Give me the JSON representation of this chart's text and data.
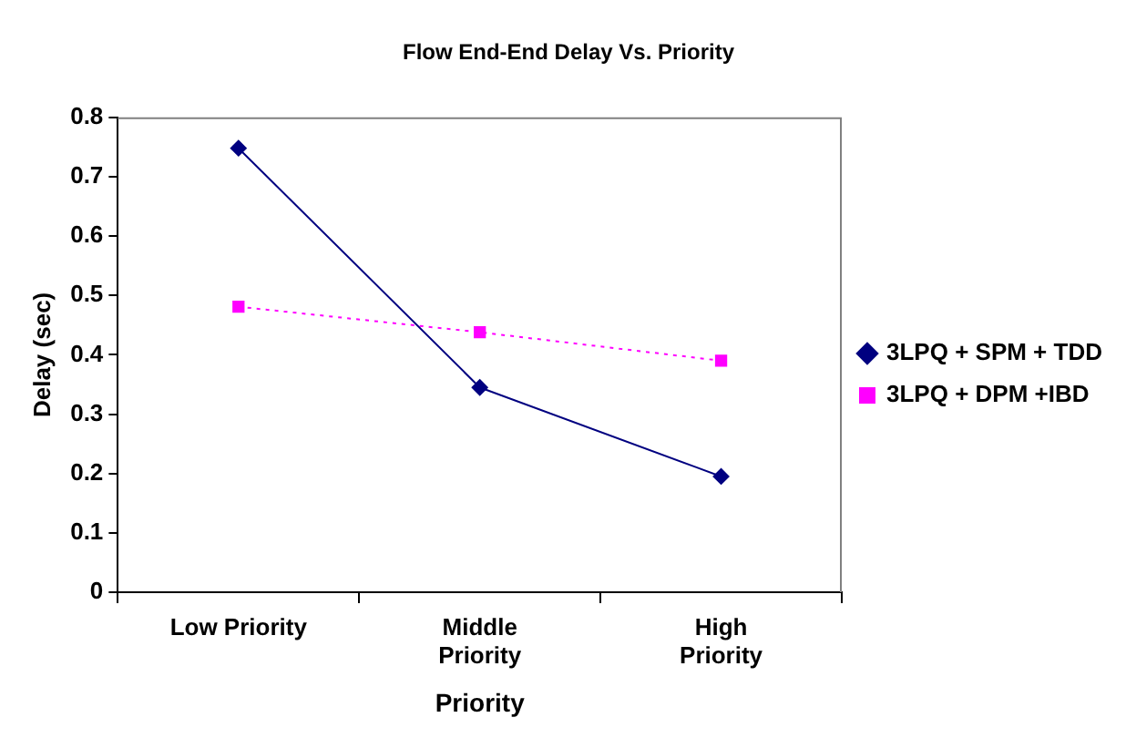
{
  "chart_data": {
    "type": "line",
    "title": "Flow End-End Delay Vs. Priority",
    "xlabel": "Priority",
    "ylabel": "Delay (sec)",
    "categories": [
      "Low Priority",
      "Middle Priority",
      "High Priority"
    ],
    "series": [
      {
        "name": "3LPQ + SPM + TDD",
        "color": "#000080",
        "values": [
          0.748,
          0.345,
          0.195
        ],
        "marker": "diamond",
        "line_style": "solid"
      },
      {
        "name": "3LPQ + DPM +IBD",
        "color": "#ff00ff",
        "values": [
          0.481,
          0.438,
          0.39
        ],
        "marker": "square",
        "line_style": "dotted"
      }
    ],
    "ylim": [
      0,
      0.8
    ],
    "yticks": [
      0,
      0.1,
      0.2,
      0.3,
      0.4,
      0.5,
      0.6,
      0.7,
      0.8
    ],
    "grid": false,
    "legend": "right"
  }
}
